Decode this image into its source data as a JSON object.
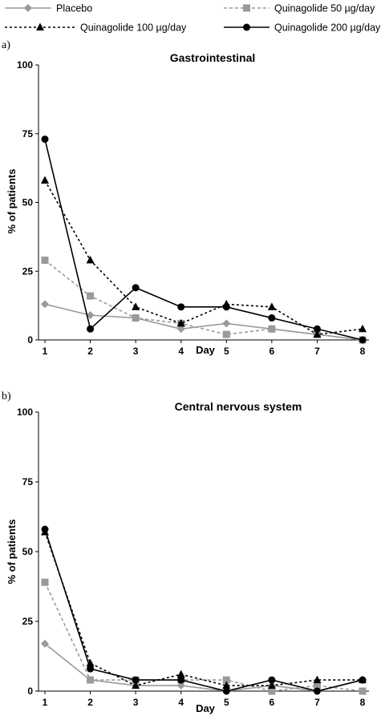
{
  "legend": [
    {
      "name": "Placebo",
      "color": "#9a9a9a",
      "dash": "solid",
      "marker": "diamond"
    },
    {
      "name": "Quinagolide 50 µg/day",
      "color": "#9a9a9a",
      "dash": "dashed",
      "marker": "square"
    },
    {
      "name": "Quinagolide 100 µg/day",
      "color": "#000000",
      "dash": "dotted",
      "marker": "triangle"
    },
    {
      "name": "Quinagolide 200 µg/day",
      "color": "#000000",
      "dash": "solid",
      "marker": "circle"
    }
  ],
  "chart_data": [
    {
      "type": "line",
      "panel_label": "a)",
      "title": "Gastrointestinal",
      "xlabel": "Day",
      "ylabel": "% of patients",
      "x": [
        1,
        2,
        3,
        4,
        5,
        6,
        7,
        8
      ],
      "ylim": [
        0,
        100
      ],
      "yticks": [
        0,
        25,
        50,
        75,
        100
      ],
      "grid": false,
      "series": [
        {
          "name": "Placebo",
          "values": [
            13,
            9,
            8,
            4,
            6,
            4,
            2,
            0
          ]
        },
        {
          "name": "Quinagolide 50 µg/day",
          "values": [
            29,
            16,
            8,
            6,
            2,
            4,
            2,
            0
          ]
        },
        {
          "name": "Quinagolide 100 µg/day",
          "values": [
            58,
            29,
            12,
            6,
            13,
            12,
            2,
            4
          ]
        },
        {
          "name": "Quinagolide 200 µg/day",
          "values": [
            73,
            4,
            19,
            12,
            12,
            8,
            4,
            0
          ]
        }
      ]
    },
    {
      "type": "line",
      "panel_label": "b)",
      "title": "Central nervous system",
      "xlabel": "Day",
      "ylabel": "% of patients",
      "x": [
        1,
        2,
        3,
        4,
        5,
        6,
        7,
        8
      ],
      "ylim": [
        0,
        100
      ],
      "yticks": [
        0,
        25,
        50,
        75,
        100
      ],
      "grid": false,
      "series": [
        {
          "name": "Placebo",
          "values": [
            17,
            4,
            2,
            2,
            0,
            2,
            0,
            4
          ]
        },
        {
          "name": "Quinagolide 50 µg/day",
          "values": [
            39,
            4,
            4,
            4,
            4,
            0,
            2,
            0
          ]
        },
        {
          "name": "Quinagolide 100 µg/day",
          "values": [
            57,
            10,
            2,
            6,
            2,
            2,
            4,
            4
          ]
        },
        {
          "name": "Quinagolide 200 µg/day",
          "values": [
            58,
            8,
            4,
            4,
            0,
            4,
            0,
            4
          ]
        }
      ]
    }
  ]
}
